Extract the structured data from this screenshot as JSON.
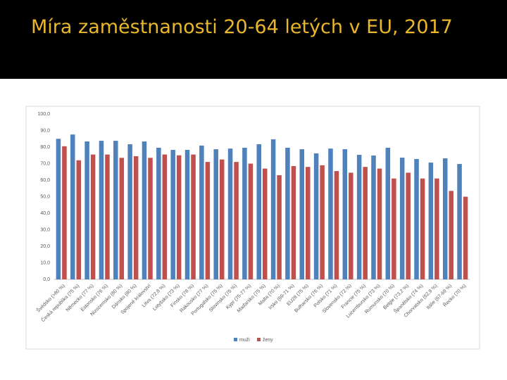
{
  "title": "Míra zaměstnanosti 20-64 letých v EU, 2017",
  "chart_data": {
    "type": "bar",
    "categories": [
      "Švédsko (>80 %)",
      "Česká republika (75 %)",
      "Německo (77 %)",
      "Estonsko (76 %)",
      "Nizozemsko (80 %)",
      "Dánsko (80 %)",
      "Spojené království",
      "Litva (72,8 %)",
      "Lotyšsko (73 %)",
      "Finsko (78 %)",
      "Rakousko (77 %)",
      "Portugalsko (75 %)",
      "Slovinsko (75 %)",
      "Kypr (75-77 %)",
      "Maďarsko (75 %)",
      "Malta (70 %)",
      "Irsko (69-71 %)",
      "EU28 (75 %)",
      "Bulharsko (76 %)",
      "Polsko (71 %)",
      "Slovensko (72 %)",
      "Francie (75 %)",
      "Lucembursko (73 %)",
      "Rumunsko (70 %)",
      "Belgie (73,2 %)",
      "Španělsko (74 %)",
      "Chorvatsko (62,9 %)",
      "Itálie (67-69 %)",
      "Řecko (70 %)"
    ],
    "series": [
      {
        "name": "muži",
        "color": "#4f81bd",
        "values": [
          85,
          87.6,
          83.4,
          83.8,
          83.8,
          81.7,
          83.4,
          79.6,
          78.3,
          78.3,
          80.9,
          78.7,
          79.1,
          79.6,
          81.7,
          84.7,
          79.6,
          78.7,
          76.2,
          79.1,
          78.7,
          75.3,
          74.9,
          79.6,
          73.6,
          72.8,
          70.6,
          73.2,
          69.8
        ]
      },
      {
        "name": "ženy",
        "color": "#c0504d",
        "values": [
          80.5,
          72,
          75.5,
          75.5,
          73.5,
          74.5,
          73.5,
          75.5,
          75,
          75.5,
          71,
          72.5,
          71,
          70,
          67,
          63,
          68.5,
          68,
          69,
          65.5,
          64.5,
          68,
          67,
          61,
          64.5,
          61,
          61,
          53.5,
          50
        ]
      }
    ],
    "ylim": [
      0,
      100
    ],
    "yticks": [
      {
        "value": 0,
        "label": "0,0"
      },
      {
        "value": 10,
        "label": "10,0"
      },
      {
        "value": 20,
        "label": "20,0"
      },
      {
        "value": 30,
        "label": "30,0"
      },
      {
        "value": 40,
        "label": "40,0"
      },
      {
        "value": 50,
        "label": "50,0"
      },
      {
        "value": 60,
        "label": "60,0"
      },
      {
        "value": 70,
        "label": "70,0"
      },
      {
        "value": 80,
        "label": "80,0"
      },
      {
        "value": 90,
        "label": "90,0"
      },
      {
        "value": 100,
        "label": "100,0"
      }
    ],
    "grid": false,
    "legend": "bottom"
  }
}
